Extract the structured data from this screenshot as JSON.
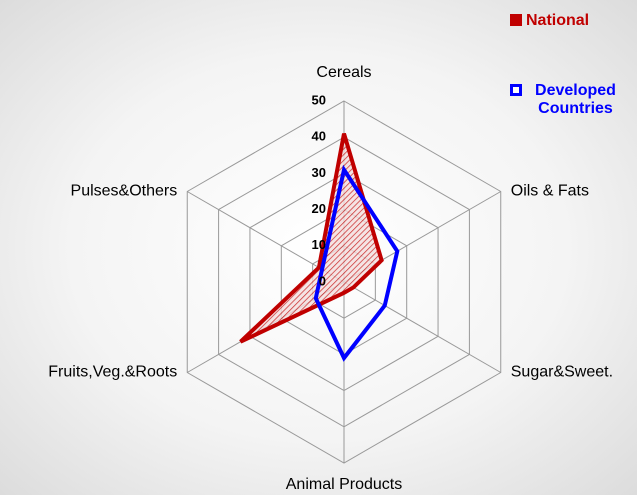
{
  "chart_data": {
    "type": "radar",
    "categories": [
      "Cereals",
      "Oils & Fats",
      "Sugar&Sweet.",
      "Animal Products",
      "Fruits,Veg.&Roots",
      "Pulses&Others"
    ],
    "series": [
      {
        "name": "National",
        "color": "#c00000",
        "values": [
          41,
          12,
          3,
          3,
          33,
          8
        ]
      },
      {
        "name": "Developed Countries",
        "color": "#0000ff",
        "values": [
          31,
          17,
          13,
          21,
          9,
          7
        ]
      }
    ],
    "rlim": [
      0,
      50
    ],
    "rticks": [
      0,
      10,
      20,
      30,
      40,
      50
    ],
    "grid": true
  }
}
